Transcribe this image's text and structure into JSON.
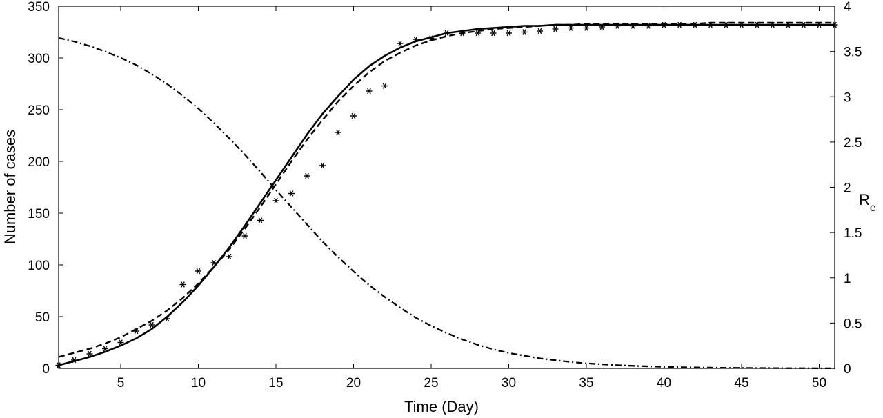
{
  "chart_data": {
    "type": "line",
    "title": "",
    "xlabel": "Time (Day)",
    "ylabel_left": "Number of cases",
    "ylabel_right": {
      "main": "R",
      "subscript": "e"
    },
    "xlim": [
      1,
      51
    ],
    "ylim_left": [
      0,
      350
    ],
    "ylim_right": [
      0,
      4
    ],
    "xticks": [
      5,
      10,
      15,
      20,
      25,
      30,
      35,
      40,
      45,
      50
    ],
    "yticks_left": [
      0,
      50,
      100,
      150,
      200,
      250,
      300,
      350
    ],
    "yticks_right": [
      0,
      0.5,
      1,
      1.5,
      2,
      2.5,
      3,
      3.5,
      4
    ],
    "xtick_labels": [
      "5",
      "10",
      "15",
      "20",
      "25",
      "30",
      "35",
      "40",
      "45",
      "50"
    ],
    "ytick_labels_left": [
      "0",
      "50",
      "100",
      "150",
      "200",
      "250",
      "300",
      "350"
    ],
    "ytick_labels_right": [
      "0",
      "0.5",
      "1",
      "1.5",
      "2",
      "2.5",
      "3",
      "3.5",
      "4"
    ],
    "grid": false,
    "legend": "none",
    "series": [
      {
        "style": "markers-asterisk",
        "axis": "left",
        "x": [
          1,
          2,
          3,
          4,
          5,
          6,
          7,
          8,
          9,
          10,
          11,
          12,
          13,
          14,
          15,
          16,
          17,
          18,
          19,
          20,
          21,
          22,
          23,
          24,
          25,
          26,
          27,
          28,
          29,
          30,
          31,
          32,
          33,
          34,
          35,
          36,
          37,
          38,
          39,
          40,
          41,
          42,
          43,
          44,
          45,
          46,
          47,
          48,
          49,
          50,
          51
        ],
        "y": [
          3,
          8,
          14,
          19,
          25,
          36,
          42,
          48,
          81,
          94,
          102,
          108,
          128,
          143,
          162,
          169,
          186,
          196,
          228,
          244,
          268,
          273,
          314,
          318,
          319,
          324,
          324,
          324,
          324,
          324,
          325,
          326,
          328,
          329,
          329,
          330,
          331,
          331,
          331,
          332,
          332,
          332,
          332,
          332,
          332,
          332,
          332,
          332,
          332,
          332,
          332
        ]
      },
      {
        "style": "solid",
        "axis": "left",
        "x": [
          1,
          2,
          3,
          4,
          5,
          6,
          7,
          8,
          9,
          10,
          11,
          12,
          13,
          14,
          15,
          16,
          17,
          18,
          19,
          20,
          21,
          22,
          23,
          24,
          25,
          26,
          27,
          28,
          29,
          30,
          31,
          32,
          33,
          34,
          35,
          36,
          37,
          38,
          39,
          40,
          41,
          42,
          43,
          44,
          45,
          46,
          47,
          48,
          49,
          50,
          51
        ],
        "y": [
          3,
          7,
          11,
          16,
          22,
          29,
          38,
          50,
          64,
          80,
          98,
          117,
          138,
          160,
          182,
          204,
          226,
          246,
          263,
          279,
          292,
          302,
          310,
          316,
          320,
          324,
          326,
          328,
          329,
          330,
          331,
          331,
          332,
          332,
          332,
          332,
          332,
          332,
          332,
          332,
          332,
          332,
          332,
          332,
          332,
          332,
          332,
          332,
          332,
          332,
          332
        ]
      },
      {
        "style": "dashed",
        "axis": "left",
        "x": [
          1,
          2,
          3,
          4,
          5,
          6,
          7,
          8,
          9,
          10,
          11,
          12,
          13,
          14,
          15,
          16,
          17,
          18,
          19,
          20,
          21,
          22,
          23,
          24,
          25,
          26,
          27,
          28,
          29,
          30,
          31,
          32,
          33,
          34,
          35,
          36,
          37,
          38,
          39,
          40,
          41,
          42,
          43,
          44,
          45,
          46,
          47,
          48,
          49,
          50,
          51
        ],
        "y": [
          11,
          15,
          19,
          24,
          30,
          38,
          46,
          56,
          68,
          82,
          98,
          115,
          135,
          156,
          178,
          200,
          221,
          240,
          258,
          273,
          286,
          297,
          305,
          312,
          317,
          321,
          324,
          326,
          328,
          329,
          330,
          331,
          332,
          332,
          333,
          333,
          333,
          333,
          333,
          333,
          333,
          333,
          334,
          334,
          334,
          334,
          334,
          334,
          334,
          334,
          334
        ]
      },
      {
        "style": "dash-dot",
        "axis": "right",
        "x": [
          1,
          2,
          3,
          4,
          5,
          6,
          7,
          8,
          9,
          10,
          11,
          12,
          13,
          14,
          15,
          16,
          17,
          18,
          19,
          20,
          21,
          22,
          23,
          24,
          25,
          26,
          27,
          28,
          29,
          30,
          31,
          32,
          33,
          34,
          35,
          36,
          37,
          38,
          39,
          40,
          41,
          42,
          43,
          44,
          45,
          46,
          47,
          48,
          49,
          50,
          51
        ],
        "y": [
          3.65,
          3.61,
          3.56,
          3.5,
          3.43,
          3.35,
          3.25,
          3.14,
          3.01,
          2.87,
          2.71,
          2.54,
          2.36,
          2.17,
          1.97,
          1.78,
          1.59,
          1.4,
          1.23,
          1.07,
          0.92,
          0.79,
          0.67,
          0.56,
          0.47,
          0.39,
          0.32,
          0.26,
          0.21,
          0.17,
          0.14,
          0.11,
          0.09,
          0.07,
          0.055,
          0.045,
          0.035,
          0.028,
          0.022,
          0.017,
          0.013,
          0.01,
          0.008,
          0.006,
          0.005,
          0.004,
          0.003,
          0.002,
          0.002,
          0.001,
          0.001
        ]
      }
    ]
  }
}
